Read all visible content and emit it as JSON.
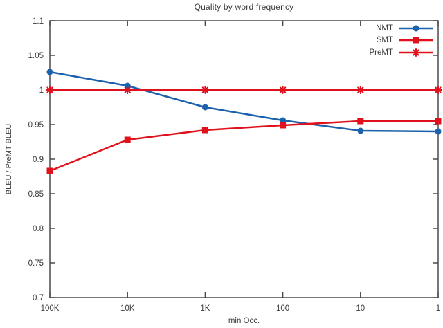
{
  "chart_data": {
    "type": "line",
    "title": "Quality by word frequency",
    "xlabel": "min Occ.",
    "ylabel": "BLEU / PreMT BLEU",
    "x_scale": "log-reversed",
    "categories": [
      "100K",
      "10K",
      "1K",
      "100",
      "10",
      "1"
    ],
    "x_values": [
      100000,
      10000,
      1000,
      100,
      10,
      1
    ],
    "ylim": [
      0.7,
      1.1
    ],
    "yticks": [
      {
        "label": "1.1",
        "value": 1.1
      },
      {
        "label": "1.05",
        "value": 1.05
      },
      {
        "label": "1",
        "value": 1.0
      },
      {
        "label": "0.95",
        "value": 0.95
      },
      {
        "label": "0.9",
        "value": 0.9
      },
      {
        "label": "0.85",
        "value": 0.85
      },
      {
        "label": "0.8",
        "value": 0.8
      },
      {
        "label": "0.75",
        "value": 0.75
      },
      {
        "label": "0.7",
        "value": 0.7
      }
    ],
    "grid": false,
    "legend_position": "top-right-inside",
    "axis_color": "#4a4a4a",
    "text_color": "#3a3a3a",
    "series": [
      {
        "name": "NMT",
        "color": "#1b61ab",
        "marker": "circle",
        "values": [
          1.026,
          1.006,
          0.975,
          0.956,
          0.941,
          0.94
        ]
      },
      {
        "name": "SMT",
        "color": "#e0101c",
        "marker": "square",
        "values": [
          0.883,
          0.928,
          0.942,
          0.949,
          0.955,
          0.955
        ]
      },
      {
        "name": "PreMT",
        "color": "#e0101c",
        "marker": "asterisk",
        "values": [
          1.0,
          1.0,
          1.0,
          1.0,
          1.0,
          1.0
        ]
      }
    ]
  }
}
